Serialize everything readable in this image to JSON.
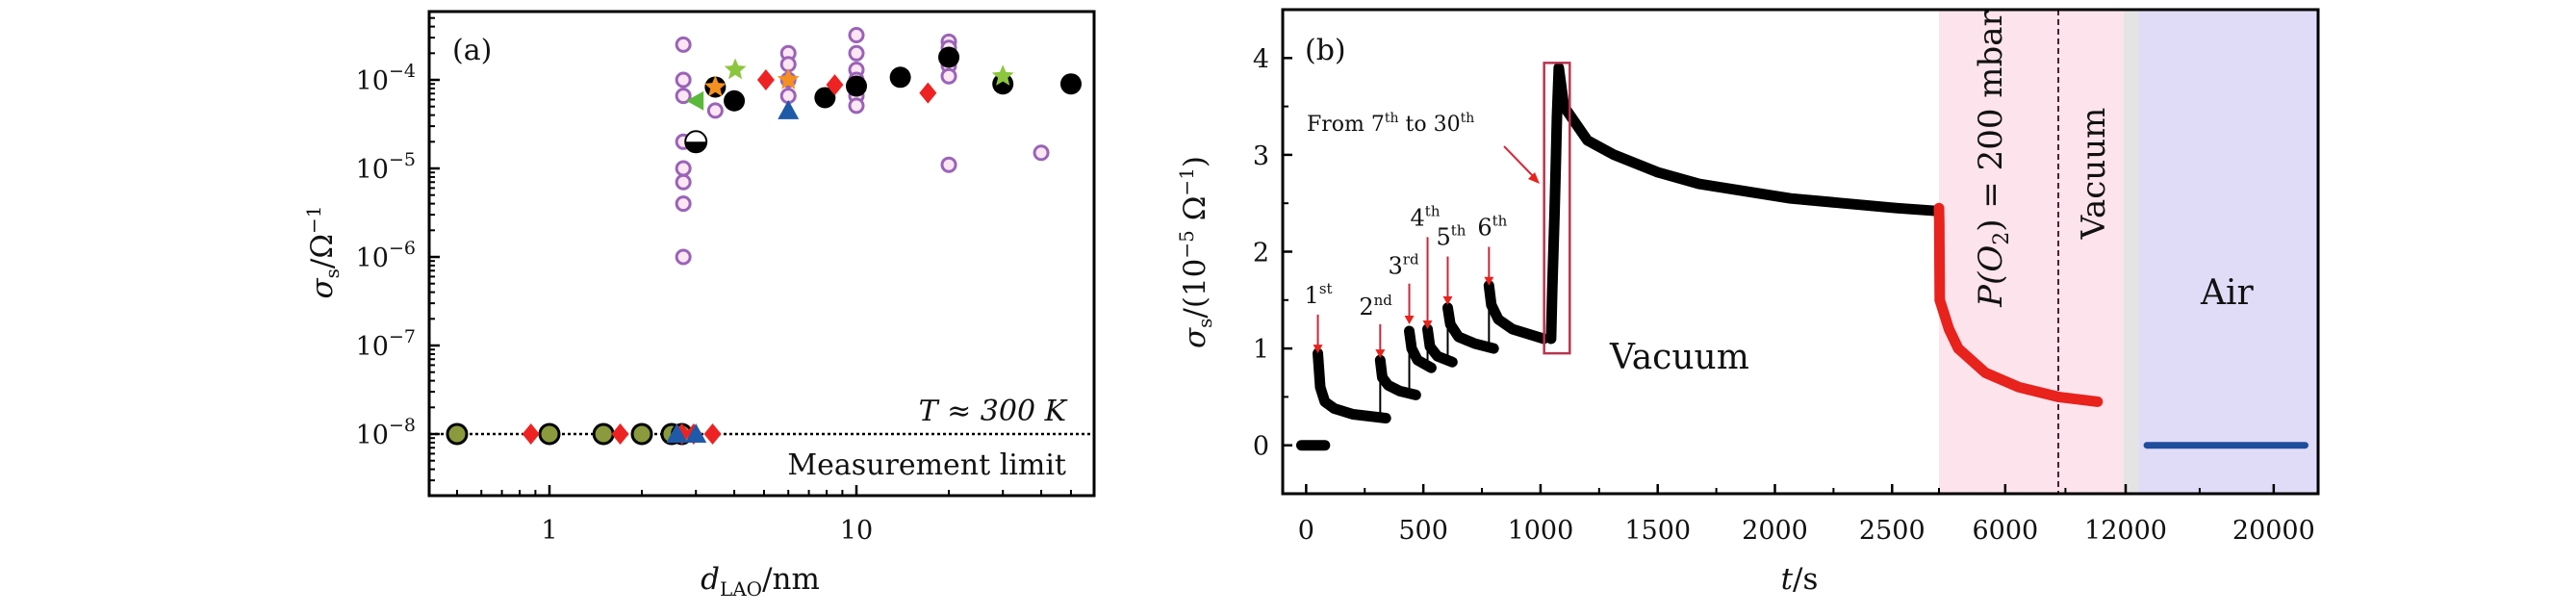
{
  "chart_data": [
    {
      "type": "scatter",
      "panel_label": "(a)",
      "xlabel": {
        "main": "d",
        "sub": "LAO",
        "rest": "/nm"
      },
      "ylabel": {
        "main": "σ",
        "sub": "s",
        "rest": "/Ω",
        "sup": "−1"
      },
      "x_scale": "log",
      "y_scale": "log",
      "xlim": [
        0.405,
        59.5
      ],
      "ylim": [
        2e-09,
        0.00059
      ],
      "x_ticks": [
        {
          "value": 1,
          "label": "1"
        },
        {
          "value": 10,
          "label": "10"
        }
      ],
      "y_ticks": [
        {
          "value": 0.0001,
          "base": "10",
          "exp": "−4"
        },
        {
          "value": 1e-05,
          "base": "10",
          "exp": "−5"
        },
        {
          "value": 1e-06,
          "base": "10",
          "exp": "−6"
        },
        {
          "value": 1e-07,
          "base": "10",
          "exp": "−7"
        },
        {
          "value": 1e-08,
          "base": "10",
          "exp": "−8"
        }
      ],
      "grid": false,
      "reference_line": {
        "y": 1e-08,
        "style": "dotted"
      },
      "annotations": {
        "temperature": "T ≈ 300 K",
        "limit": "Measurement limit"
      },
      "series": [
        {
          "marker": "open-circle",
          "color": "#9a63b8",
          "fill": "#fde6f3",
          "points": [
            [
              2.73,
              0.00025
            ],
            [
              2.73,
              0.0001
            ],
            [
              2.73,
              6.6e-05
            ],
            [
              2.73,
              2e-05
            ],
            [
              2.73,
              1e-05
            ],
            [
              2.73,
              7e-06
            ],
            [
              2.73,
              4e-06
            ],
            [
              2.73,
              1e-06
            ],
            [
              3.47,
              4.5e-05
            ],
            [
              6,
              0.0002
            ],
            [
              6,
              0.00015
            ],
            [
              6,
              0.0001
            ],
            [
              6,
              6.6e-05
            ],
            [
              10,
              0.00032
            ],
            [
              10,
              0.0002
            ],
            [
              10,
              0.00013
            ],
            [
              10,
              0.0001
            ],
            [
              10,
              8.3e-05
            ],
            [
              10,
              6.6e-05
            ],
            [
              10,
              5.1e-05
            ],
            [
              20,
              0.00027
            ],
            [
              20,
              0.00023
            ],
            [
              20,
              0.00018
            ],
            [
              20,
              0.000145
            ],
            [
              20,
              0.00011
            ],
            [
              20,
              1.1e-05
            ],
            [
              40,
              1.5e-05
            ]
          ]
        },
        {
          "marker": "filled-circle",
          "color": "#000000",
          "points": [
            [
              3.47,
              8.3e-05
            ],
            [
              4.0,
              5.8e-05
            ],
            [
              7.9,
              6.3e-05
            ],
            [
              10,
              8.5e-05
            ],
            [
              13.9,
              0.000107
            ],
            [
              20,
              0.00018
            ],
            [
              30,
              9e-05
            ],
            [
              50,
              9e-05
            ]
          ]
        },
        {
          "marker": "half-circle",
          "color": "#000000",
          "points": [
            [
              3.0,
              2e-05
            ]
          ]
        },
        {
          "marker": "limit-circle",
          "color": "#000000",
          "fill": "#8a9a3c",
          "points": [
            [
              0.5,
              1e-08
            ],
            [
              1.0,
              1e-08
            ],
            [
              1.5,
              1e-08
            ],
            [
              2.0,
              1e-08
            ],
            [
              2.5,
              1e-08
            ],
            [
              2.7,
              1e-08
            ]
          ]
        },
        {
          "marker": "diamond",
          "color": "#ee2222",
          "points": [
            [
              5.07,
              0.0001
            ],
            [
              8.5,
              8.8e-05
            ],
            [
              17.1,
              7.1e-05
            ],
            [
              0.87,
              1e-08
            ],
            [
              1.7,
              1e-08
            ],
            [
              2.7,
              1e-08
            ],
            [
              2.95,
              1e-08
            ],
            [
              3.4,
              1e-08
            ]
          ]
        },
        {
          "marker": "star",
          "color": "#8cc63f",
          "points": [
            [
              4.03,
              0.00013
            ],
            [
              30,
              0.00011
            ]
          ]
        },
        {
          "marker": "star",
          "color": "#f39020",
          "points": [
            [
              3.47,
              8.3e-05
            ],
            [
              6,
              0.0001
            ]
          ]
        },
        {
          "marker": "triangle-left",
          "color": "#5cb83a",
          "points": [
            [
              3.0,
              5.8e-05
            ]
          ]
        },
        {
          "marker": "triangle-up",
          "color": "#1f5aa8",
          "points": [
            [
              6,
              4.5e-05
            ],
            [
              2.6,
              1e-08
            ],
            [
              3.0,
              1e-08
            ]
          ]
        }
      ]
    },
    {
      "type": "line",
      "panel_label": "(b)",
      "xlabel": {
        "main": "t",
        "rest": "/s"
      },
      "ylabel": {
        "main": "σ",
        "sub": "s",
        "rest": "/(10",
        "sup": "−5",
        "rest2": " Ω",
        "sup2": "−1",
        "close": ")"
      },
      "ylim": [
        -0.5,
        4.5
      ],
      "x_axis_segments": [
        [
          -100,
          2700
        ],
        [
          2700,
          12000
        ],
        [
          12000,
          22400
        ]
      ],
      "x_ticks": [
        {
          "value": 0,
          "label": "0"
        },
        {
          "value": 500,
          "label": "500"
        },
        {
          "value": 1000,
          "label": "1000"
        },
        {
          "value": 1500,
          "label": "1500"
        },
        {
          "value": 2000,
          "label": "2000"
        },
        {
          "value": 2500,
          "label": "2500"
        },
        {
          "value": 6000,
          "label": "6000"
        },
        {
          "value": 12000,
          "label": "12000"
        },
        {
          "value": 20000,
          "label": "20000"
        }
      ],
      "x_minor_ticks": [
        250,
        750,
        1250,
        1750,
        2250,
        2700,
        9000,
        16000
      ],
      "y_ticks": [
        {
          "value": 0,
          "label": "0"
        },
        {
          "value": 1,
          "label": "1"
        },
        {
          "value": 2,
          "label": "2"
        },
        {
          "value": 3,
          "label": "3"
        },
        {
          "value": 4,
          "label": "4"
        }
      ],
      "y_minor_ticks": [
        0.5,
        1.5,
        2.5,
        3.5
      ],
      "grid": false,
      "regions": [
        {
          "range": [
            2700,
            11900
          ],
          "color": "#fde3ec"
        },
        {
          "range": [
            11900,
            12700
          ],
          "color": "#e4e4e4"
        },
        {
          "range": [
            12700,
            22400
          ],
          "color": "#e0dcf8"
        }
      ],
      "divider": {
        "x": 8645,
        "style": "dashed"
      },
      "region_labels": {
        "o2": {
          "prefix": "P(O",
          "sub": "2",
          "suffix": ") = 200 mbar"
        },
        "vacuum_right": "Vacuum",
        "vacuum_main": "Vacuum",
        "air": "Air"
      },
      "pulse_annotations": [
        {
          "num": "1",
          "sup": "st",
          "t": 50,
          "from": 1.35,
          "to": 0.95
        },
        {
          "num": "2",
          "sup": "nd",
          "t": 316,
          "from": 1.25,
          "to": 0.9
        },
        {
          "num": "3",
          "sup": "rd",
          "t": 440,
          "from": 1.67,
          "to": 1.25
        },
        {
          "num": "4",
          "sup": "th",
          "t": 518,
          "from": 2.15,
          "to": 1.2
        },
        {
          "num": "5",
          "sup": "th",
          "t": 604,
          "from": 1.95,
          "to": 1.45
        },
        {
          "num": "6",
          "sup": "th",
          "t": 780,
          "from": 2.05,
          "to": 1.65
        }
      ],
      "range_annotation": {
        "text1": "From 7",
        "sup1": "th",
        "text2": " to 30",
        "sup2": "th",
        "box": {
          "t": [
            1040,
            1100
          ],
          "y": [
            0.95,
            3.95
          ]
        }
      },
      "series": [
        {
          "color": "#000000",
          "segments": [
            [
              [
                -20,
                0
              ],
              [
                80,
                0
              ]
            ],
            [
              [
                50,
                0.95
              ],
              [
                60,
                0.6
              ],
              [
                80,
                0.45
              ],
              [
                120,
                0.38
              ],
              [
                200,
                0.32
              ],
              [
                340,
                0.28
              ]
            ],
            [
              [
                316,
                0.88
              ],
              [
                325,
                0.7
              ],
              [
                350,
                0.62
              ],
              [
                400,
                0.56
              ],
              [
                468,
                0.52
              ]
            ],
            [
              [
                440,
                1.18
              ],
              [
                450,
                1.0
              ],
              [
                475,
                0.88
              ],
              [
                534,
                0.8
              ]
            ],
            [
              [
                518,
                1.2
              ],
              [
                528,
                1.02
              ],
              [
                560,
                0.92
              ],
              [
                624,
                0.86
              ]
            ],
            [
              [
                604,
                1.42
              ],
              [
                615,
                1.25
              ],
              [
                650,
                1.12
              ],
              [
                720,
                1.05
              ],
              [
                800,
                1.0
              ]
            ],
            [
              [
                780,
                1.65
              ],
              [
                790,
                1.45
              ],
              [
                820,
                1.3
              ],
              [
                880,
                1.2
              ],
              [
                1014,
                1.1
              ]
            ],
            [
              [
                1045,
                1.1
              ],
              [
                1050,
                1.6
              ],
              [
                1055,
                2.0
              ],
              [
                1060,
                2.4
              ],
              [
                1065,
                2.9
              ],
              [
                1070,
                3.4
              ],
              [
                1078,
                3.9
              ],
              [
                1100,
                3.5
              ],
              [
                1200,
                3.15
              ],
              [
                1314,
                3.0
              ],
              [
                1500,
                2.82
              ],
              [
                1676,
                2.7
              ],
              [
                2067,
                2.55
              ],
              [
                2517,
                2.45
              ],
              [
                2690,
                2.42
              ]
            ]
          ]
        },
        {
          "color": "#e8221c",
          "segments": [
            [
              [
                2700,
                2.45
              ],
              [
                2712,
                2.3
              ],
              [
                2740,
                1.5
              ],
              [
                3200,
                1.2
              ],
              [
                3660,
                1.0
              ],
              [
                5010,
                0.75
              ],
              [
                6680,
                0.6
              ],
              [
                8640,
                0.5
              ],
              [
                10600,
                0.45
              ]
            ]
          ]
        },
        {
          "color": "#1f4e9c",
          "segments": [
            [
              [
                13150,
                0
              ],
              [
                21700,
                0
              ]
            ]
          ]
        }
      ]
    }
  ]
}
